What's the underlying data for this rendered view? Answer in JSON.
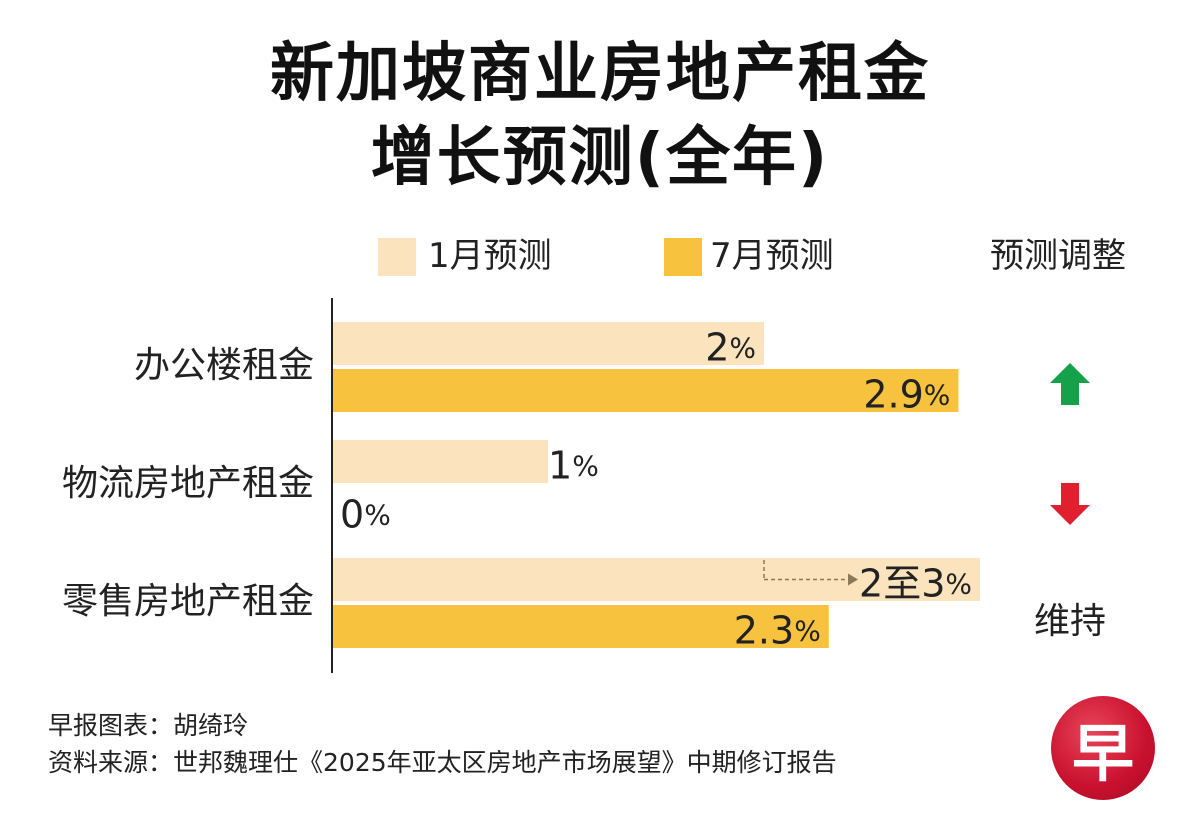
{
  "title_line1": "新加坡商业房地产租金",
  "title_line2": "增长预测(全年)",
  "legend": {
    "jan_label": "1月预测",
    "jul_label": "7月预测",
    "adjust_header": "预测调整"
  },
  "colors": {
    "jan": "#fae3bd",
    "jul": "#f7c33f",
    "up": "#15a04a",
    "down": "#e0202f",
    "axis": "#222222",
    "arrow": "#8b7a5a"
  },
  "chart_data": {
    "type": "bar",
    "orientation": "horizontal",
    "categories": [
      "办公楼租金",
      "物流房地产租金",
      "零售房地产租金"
    ],
    "series": [
      {
        "name": "1月预测",
        "values": [
          2,
          1,
          3
        ],
        "labels": [
          "2%",
          "1%",
          "2至3%"
        ]
      },
      {
        "name": "7月预测",
        "values": [
          2.9,
          0,
          2.3
        ],
        "labels": [
          "2.9%",
          "0%",
          "2.3%"
        ]
      }
    ],
    "range_note": {
      "category": "零售房地产租金",
      "from": 2,
      "to": 3
    },
    "adjustments": [
      {
        "category": "办公楼租金",
        "icon": "arrow-up-icon",
        "text": ""
      },
      {
        "category": "物流房地产租金",
        "icon": "arrow-down-icon",
        "text": ""
      },
      {
        "category": "零售房地产租金",
        "icon": "",
        "text": "维持"
      }
    ],
    "xlim": [
      0,
      3
    ],
    "grid": false
  },
  "source": {
    "credit": "早报图表：胡绮玲",
    "reference": "资料来源：世邦魏理仕《2025年亚太区房地产市场展望》中期修订报告"
  },
  "logo": {
    "text": "早"
  }
}
